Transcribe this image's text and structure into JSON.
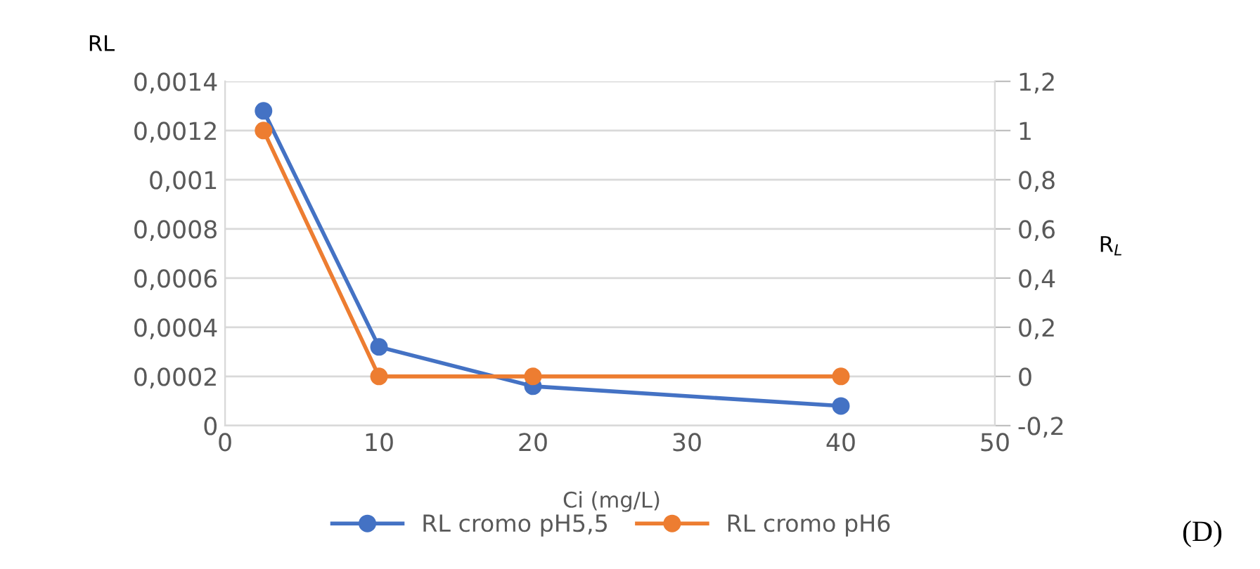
{
  "chart_data": {
    "type": "line",
    "ylabel": "RL",
    "y2label": "R$_{L}$",
    "xlabel": "Ci (mg/L)",
    "x": [
      2.5,
      10,
      20,
      40
    ],
    "series": [
      {
        "name": "RL cromo pH5,5",
        "color": "#4472c4",
        "values": [
          0.00128,
          0.00032,
          0.00016,
          8e-05
        ]
      },
      {
        "name": "RL cromo pH6",
        "color": "#ed7d31",
        "values": [
          1,
          0,
          0,
          0
        ],
        "axis": "y2"
      }
    ],
    "xlim": [
      0,
      50
    ],
    "xticks": [
      0,
      10,
      20,
      30,
      40,
      50
    ],
    "ylim": [
      0,
      0.0014
    ],
    "yticks": [
      {
        "value": 0,
        "label": "0"
      },
      {
        "value": 0.0002,
        "label": "0,0002"
      },
      {
        "value": 0.0004,
        "label": "0,0004"
      },
      {
        "value": 0.0006,
        "label": "0,0006"
      },
      {
        "value": 0.0008,
        "label": "0,0008"
      },
      {
        "value": 0.001,
        "label": "0,001"
      },
      {
        "value": 0.0012,
        "label": "0,0012"
      },
      {
        "value": 0.0014,
        "label": "0,0014"
      }
    ],
    "y2lim": [
      -0.2,
      1.2
    ],
    "y2ticks": [
      {
        "value": -0.2,
        "label": "-0,2"
      },
      0,
      {
        "value": 0.2,
        "label": "0,2"
      },
      {
        "value": 0.4,
        "label": "0,4"
      },
      {
        "value": 0.6,
        "label": "0,6"
      },
      {
        "value": 0.8,
        "label": "0,8"
      },
      1,
      {
        "value": 1.2,
        "label": "1,2"
      }
    ],
    "grid": "y",
    "legend": "bottom",
    "marker": "circle",
    "line_style": "solid",
    "annotations": [
      "(D)"
    ]
  }
}
